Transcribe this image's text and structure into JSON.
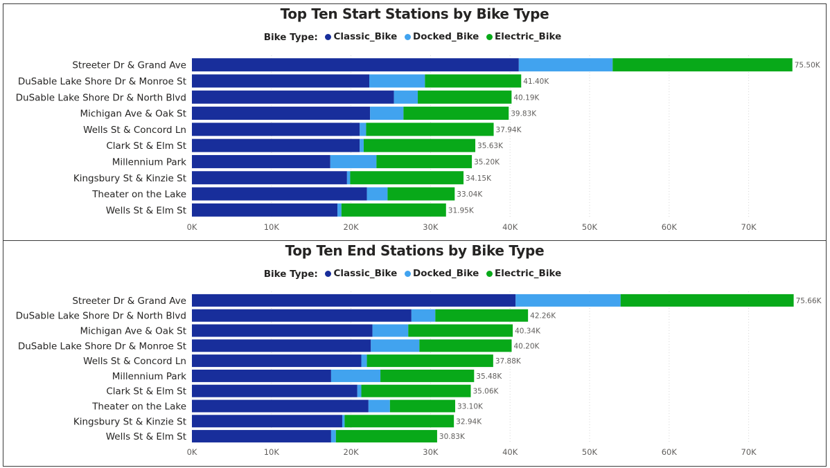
{
  "colors": {
    "classic": "#182e9b",
    "docked": "#41a3ef",
    "electric": "#08a919"
  },
  "chart_data": [
    {
      "type": "bar",
      "orientation": "horizontal",
      "stacked": true,
      "title": "Top Ten Start Stations by Bike Type",
      "legend_title": "Bike Type:",
      "legend_position": "top-center",
      "categories": [
        "Streeter Dr & Grand Ave",
        "DuSable Lake Shore Dr & Monroe St",
        "DuSable Lake Shore Dr & North Blvd",
        "Michigan Ave & Oak St",
        "Wells St & Concord Ln",
        "Clark St & Elm St",
        "Millennium Park",
        "Kingsbury St & Kinzie St",
        "Theater on the Lake",
        "Wells St & Elm St"
      ],
      "series": [
        {
          "name": "Classic_Bike",
          "values": [
            41100,
            22300,
            25400,
            22400,
            21100,
            21100,
            17400,
            19500,
            22000,
            18300
          ]
        },
        {
          "name": "Docked_Bike",
          "values": [
            11800,
            7000,
            3000,
            4200,
            800,
            500,
            5800,
            400,
            2600,
            500
          ]
        },
        {
          "name": "Electric_Bike",
          "values": [
            22600,
            12100,
            11790,
            13230,
            16040,
            14030,
            12000,
            14250,
            8440,
            13150
          ]
        }
      ],
      "totals": [
        "75.50K",
        "41.40K",
        "40.19K",
        "39.83K",
        "37.94K",
        "35.63K",
        "35.20K",
        "34.15K",
        "33.04K",
        "31.95K"
      ],
      "xticks": [
        "0K",
        "10K",
        "20K",
        "30K",
        "40K",
        "50K",
        "60K",
        "70K"
      ],
      "xlim": [
        0,
        79300
      ],
      "grid": true
    },
    {
      "type": "bar",
      "orientation": "horizontal",
      "stacked": true,
      "title": "Top Ten End Stations by Bike Type",
      "legend_title": "Bike Type:",
      "legend_position": "top-center",
      "categories": [
        "Streeter Dr & Grand Ave",
        "DuSable Lake Shore Dr & North Blvd",
        "Michigan Ave & Oak St",
        "DuSable Lake Shore Dr & Monroe St",
        "Wells St & Concord Ln",
        "Millennium Park",
        "Clark St & Elm St",
        "Theater on the Lake",
        "Kingsbury St & Kinzie St",
        "Wells St & Elm St"
      ],
      "series": [
        {
          "name": "Classic_Bike",
          "values": [
            40700,
            27600,
            22700,
            22500,
            21300,
            17500,
            20800,
            22200,
            18900,
            17500
          ]
        },
        {
          "name": "Docked_Bike",
          "values": [
            13200,
            3000,
            4500,
            6100,
            700,
            6200,
            500,
            2700,
            300,
            600
          ]
        },
        {
          "name": "Electric_Bike",
          "values": [
            21760,
            11660,
            13140,
            11600,
            15880,
            11780,
            13760,
            8200,
            13740,
            12730
          ]
        }
      ],
      "totals": [
        "75.66K",
        "42.26K",
        "40.34K",
        "40.20K",
        "37.88K",
        "35.48K",
        "35.06K",
        "33.10K",
        "32.94K",
        "30.83K"
      ],
      "xticks": [
        "0K",
        "10K",
        "20K",
        "30K",
        "40K",
        "50K",
        "60K",
        "70K"
      ],
      "xlim": [
        0,
        79300
      ],
      "grid": true
    }
  ]
}
